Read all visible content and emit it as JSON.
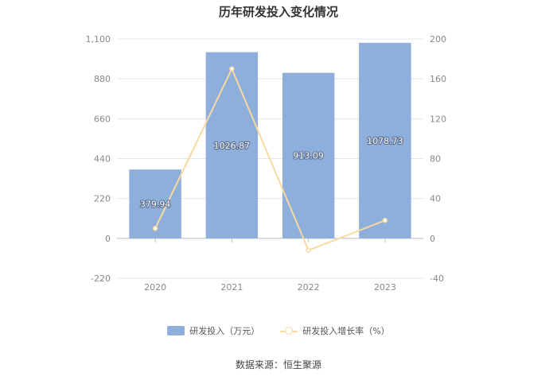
{
  "chart_data": {
    "title": "历年研发投入变化情况",
    "type": "bar+line",
    "categories": [
      "2020",
      "2021",
      "2022",
      "2023"
    ],
    "series": [
      {
        "name": "研发投入（万元）",
        "type": "bar",
        "axis": "left",
        "values": [
          379.94,
          1026.87,
          913.09,
          1078.73
        ],
        "color": "#8eaedb",
        "data_labels": [
          "379.94",
          "1026.87",
          "913.09",
          "1078.73"
        ]
      },
      {
        "name": "研发投入增长率（%）",
        "type": "line",
        "axis": "right",
        "values": [
          10,
          170,
          -12,
          18
        ],
        "color": "#f8d9a0"
      }
    ],
    "left_axis": {
      "min": -220,
      "max": 1100,
      "ticks": [
        -220,
        0,
        220,
        440,
        660,
        880,
        1100
      ],
      "tick_labels": [
        "-220",
        "0",
        "220",
        "440",
        "660",
        "880",
        "1,100"
      ]
    },
    "right_axis": {
      "min": -40,
      "max": 200,
      "ticks": [
        -40,
        0,
        40,
        80,
        120,
        160,
        200
      ],
      "tick_labels": [
        "-40",
        "0",
        "40",
        "80",
        "120",
        "160",
        "200"
      ]
    },
    "grid": true,
    "legend_position": "bottom"
  },
  "source_text": "数据来源：恒生聚源"
}
